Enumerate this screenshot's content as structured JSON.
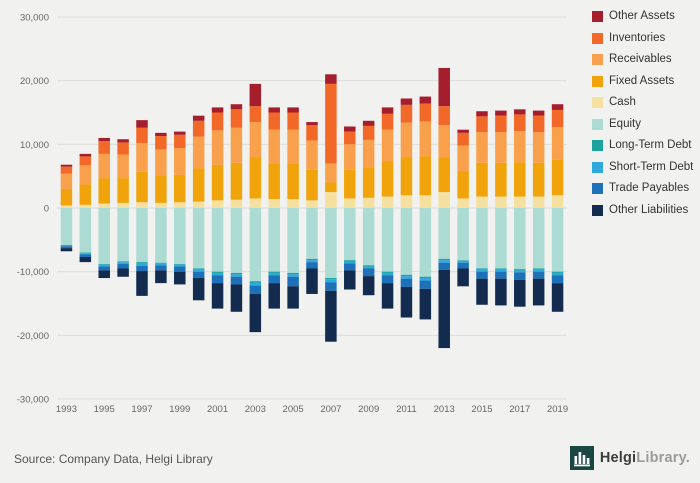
{
  "chart_data": {
    "type": "bar",
    "stacked": true,
    "title": "",
    "grid": true,
    "legend_position": "right",
    "ylim": [
      -30000,
      30000
    ],
    "y_ticks": [
      {
        "value": 30000,
        "label": "30,000"
      },
      {
        "value": 20000,
        "label": "20,000"
      },
      {
        "value": 10000,
        "label": "10,000"
      },
      {
        "value": 0,
        "label": "0"
      },
      {
        "value": -10000,
        "label": "-10,000"
      },
      {
        "value": -20000,
        "label": "-20,000"
      },
      {
        "value": -30000,
        "label": "-30,000"
      }
    ],
    "x_years": [
      1993,
      1994,
      1995,
      1996,
      1997,
      1998,
      1999,
      2000,
      2001,
      2002,
      2003,
      2004,
      2005,
      2006,
      2007,
      2008,
      2009,
      2010,
      2011,
      2012,
      2013,
      2014,
      2015,
      2016,
      2017,
      2018,
      2019
    ],
    "x_tick_labels": [
      "1993",
      "1995",
      "1997",
      "1999",
      "2001",
      "2003",
      "2005",
      "2007",
      "2009",
      "2011",
      "2013",
      "2015",
      "2017",
      "2019"
    ],
    "series": [
      {
        "name": "Cash",
        "color": "#F6E0A0",
        "stack": "assets",
        "values": [
          400,
          500,
          700,
          800,
          900,
          800,
          900,
          1000,
          1200,
          1300,
          1500,
          1400,
          1400,
          1200,
          2500,
          1500,
          1600,
          1800,
          2000,
          2000,
          2500,
          1500,
          1800,
          1800,
          1800,
          1800,
          2000
        ]
      },
      {
        "name": "Fixed Assets",
        "color": "#F0A30A",
        "stack": "assets",
        "values": [
          2600,
          3200,
          4000,
          3900,
          4800,
          4300,
          4300,
          5200,
          5600,
          5800,
          6500,
          5600,
          5600,
          4800,
          1500,
          4500,
          4800,
          5500,
          6000,
          6100,
          5500,
          4300,
          5300,
          5300,
          5400,
          5300,
          5600
        ]
      },
      {
        "name": "Receivables",
        "color": "#F9A04D",
        "stack": "assets",
        "values": [
          2400,
          3000,
          3800,
          3700,
          4500,
          4100,
          4200,
          5000,
          5400,
          5500,
          5500,
          5300,
          5300,
          4600,
          3000,
          4000,
          4300,
          5000,
          5400,
          5500,
          5000,
          4000,
          4800,
          4800,
          4900,
          4800,
          5100
        ]
      },
      {
        "name": "Inventories",
        "color": "#F26829",
        "stack": "assets",
        "values": [
          1100,
          1400,
          2000,
          1900,
          2400,
          2100,
          2100,
          2500,
          2800,
          2900,
          2500,
          2700,
          2700,
          2400,
          12500,
          2000,
          2200,
          2500,
          2800,
          2800,
          3000,
          2000,
          2500,
          2600,
          2600,
          2600,
          2700
        ]
      },
      {
        "name": "Other Assets",
        "color": "#A51E2D",
        "stack": "assets",
        "values": [
          300,
          400,
          500,
          500,
          1200,
          500,
          500,
          800,
          800,
          800,
          3500,
          800,
          800,
          500,
          1500,
          800,
          800,
          1000,
          1000,
          1100,
          6000,
          500,
          800,
          800,
          800,
          800,
          900
        ]
      },
      {
        "name": "Equity",
        "color": "#ABDBD3",
        "stack": "liabilities",
        "values": [
          -5800,
          -7000,
          -8800,
          -8400,
          -8500,
          -8600,
          -8800,
          -9500,
          -10000,
          -10200,
          -11500,
          -10000,
          -10200,
          -8000,
          -11000,
          -8200,
          -9000,
          -10000,
          -10500,
          -10800,
          -8000,
          -8200,
          -9500,
          -9500,
          -9600,
          -9500,
          -10000
        ]
      },
      {
        "name": "Long-Term Debt",
        "color": "#1BA39C",
        "stack": "liabilities",
        "values": [
          -100,
          -100,
          -100,
          -100,
          -200,
          -100,
          -100,
          -200,
          -200,
          -200,
          -200,
          -200,
          -200,
          -200,
          -200,
          -200,
          -200,
          -200,
          -200,
          -200,
          -200,
          -100,
          -200,
          -200,
          -200,
          -200,
          -200
        ]
      },
      {
        "name": "Short-Term Debt",
        "color": "#2FA8DC",
        "stack": "liabilities",
        "values": [
          -100,
          -200,
          -300,
          -300,
          -400,
          -300,
          -300,
          -300,
          -400,
          -400,
          -500,
          -400,
          -400,
          -300,
          -500,
          -300,
          -300,
          -400,
          -400,
          -400,
          -400,
          -300,
          -300,
          -300,
          -300,
          -300,
          -400
        ]
      },
      {
        "name": "Trade Payables",
        "color": "#1D71B8",
        "stack": "liabilities",
        "values": [
          -300,
          -400,
          -600,
          -700,
          -800,
          -800,
          -800,
          -1000,
          -1200,
          -1200,
          -1300,
          -1200,
          -1500,
          -1000,
          -1300,
          -1100,
          -1200,
          -1200,
          -1300,
          -1300,
          -1100,
          -900,
          -1100,
          -1100,
          -1200,
          -1100,
          -1200
        ]
      },
      {
        "name": "Other Liabilities",
        "color": "#122B4E",
        "stack": "liabilities",
        "values": [
          -500,
          -800,
          -1200,
          -1300,
          -3900,
          -2000,
          -2000,
          -3500,
          -4000,
          -4300,
          -6000,
          -4000,
          -3500,
          -4000,
          -8000,
          -3000,
          -3000,
          -4000,
          -4800,
          -4800,
          -12300,
          -2800,
          -4100,
          -4200,
          -4200,
          -4200,
          -4500
        ]
      }
    ],
    "legend_order": [
      "Other Assets",
      "Inventories",
      "Receivables",
      "Fixed Assets",
      "Cash",
      "Equity",
      "Long-Term Debt",
      "Short-Term Debt",
      "Trade Payables",
      "Other Liabilities"
    ]
  },
  "footer": {
    "source": "Source: Company Data, Helgi Library",
    "brand_helgi": "Helgi",
    "brand_library": "Library."
  },
  "style": {
    "background": "#f1f1ef",
    "gridline_color": "#dcdcda",
    "axis_text_color": "#666666",
    "logo_block_color": "#1B4743"
  }
}
